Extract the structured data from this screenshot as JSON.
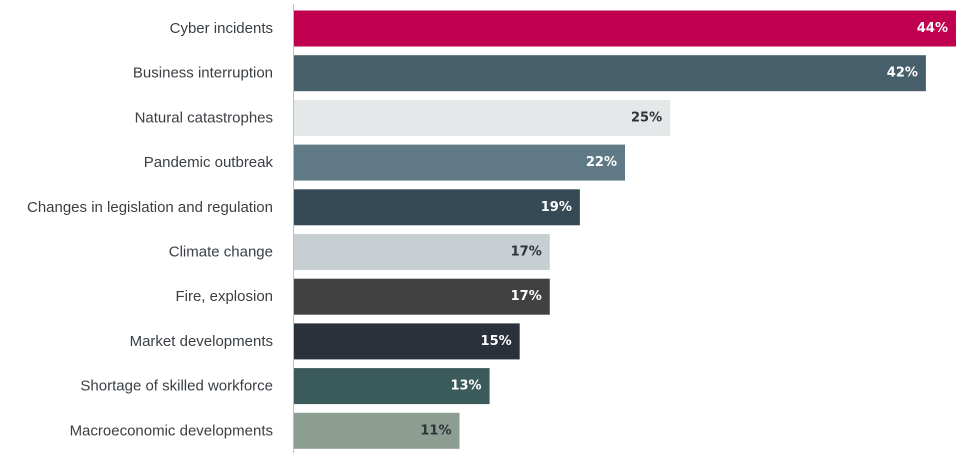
{
  "chart_data": {
    "type": "bar",
    "orientation": "horizontal",
    "categories": [
      "Cyber incidents",
      "Business interruption",
      "Natural catastrophes",
      "Pandemic outbreak",
      "Changes in legislation and regulation",
      "Climate change",
      "Fire, explosion",
      "Market developments",
      "Shortage of skilled workforce",
      "Macroeconomic developments"
    ],
    "values": [
      44,
      42,
      25,
      22,
      19,
      17,
      17,
      15,
      13,
      11
    ],
    "value_labels": [
      "44%",
      "42%",
      "25%",
      "22%",
      "19%",
      "17%",
      "17%",
      "15%",
      "13%",
      "11%"
    ],
    "bar_colors": [
      "#c0004e",
      "#475e6b",
      "#e5e8e9",
      "#5f7a86",
      "#364a56",
      "#c8cfd3",
      "#414141",
      "#2a313a",
      "#3a5b5a",
      "#8c9e92"
    ],
    "value_label_colors": [
      "#ffffff",
      "#ffffff",
      "#2c3338",
      "#ffffff",
      "#ffffff",
      "#2c3338",
      "#ffffff",
      "#ffffff",
      "#ffffff",
      "#2c3338"
    ],
    "title": "",
    "xlabel": "",
    "ylabel": "",
    "xlim": [
      0,
      44
    ],
    "unit": "%",
    "grid": false,
    "legend": "none"
  }
}
